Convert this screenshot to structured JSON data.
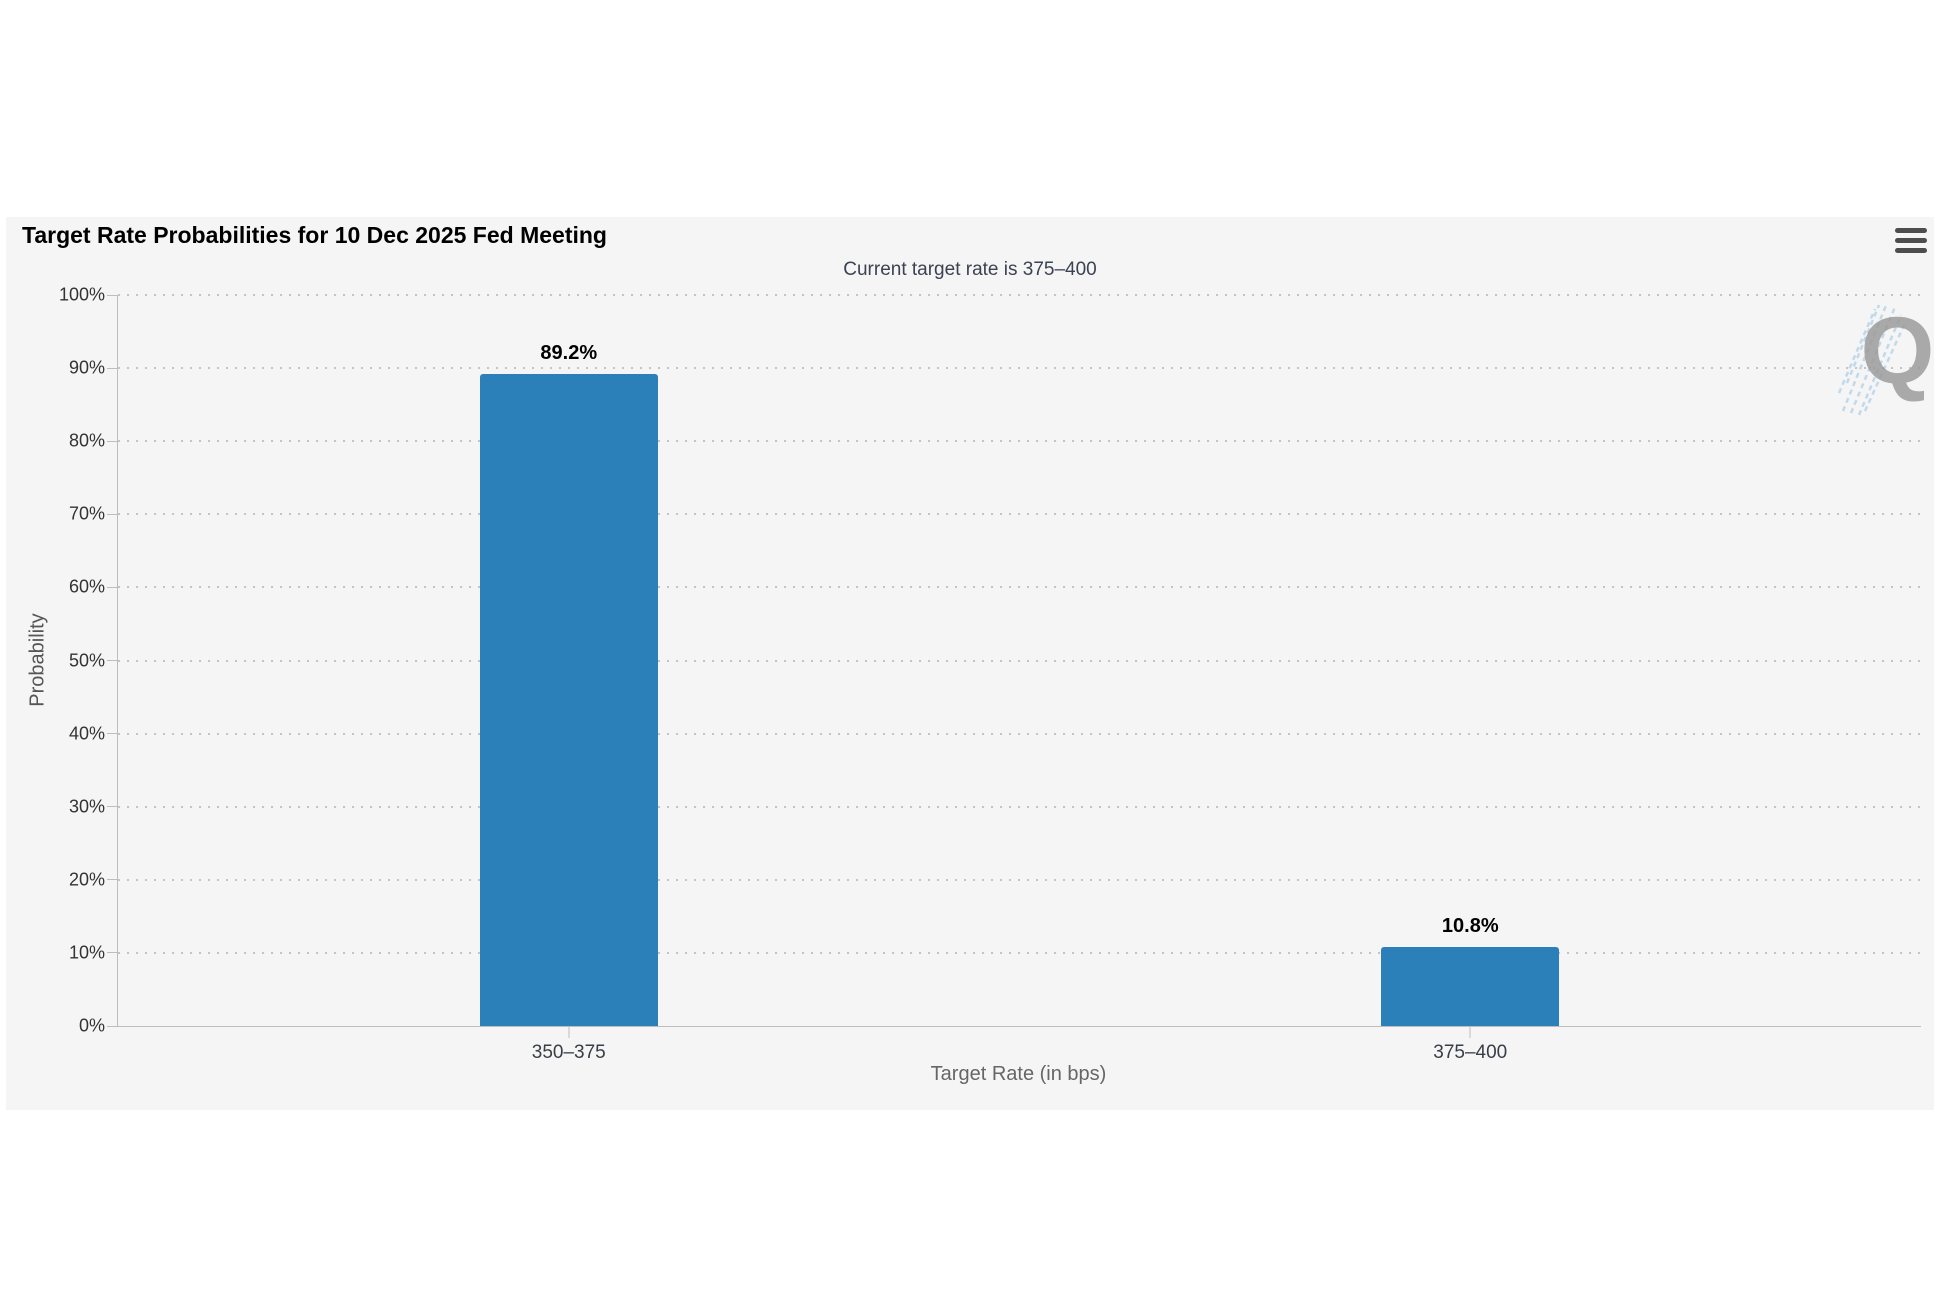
{
  "header": {
    "title": "Target Rate Probabilities for 10 Dec 2025 Fed Meeting",
    "subtitle": "Current target rate is 375–400",
    "menu_icon": "hamburger-icon"
  },
  "watermark": {
    "letter": "Q"
  },
  "chart_data": {
    "type": "bar",
    "title": "Target Rate Probabilities for 10 Dec 2025 Fed Meeting",
    "subtitle": "Current target rate is 375–400",
    "categories": [
      "350–375",
      "375–400"
    ],
    "values": [
      89.2,
      10.8
    ],
    "value_labels": [
      "89.2%",
      "10.8%"
    ],
    "xlabel": "Target Rate (in bps)",
    "ylabel": "Probability",
    "ylim": [
      0,
      100
    ],
    "ytick_step": 10,
    "yticks": [
      "0%",
      "10%",
      "20%",
      "30%",
      "40%",
      "50%",
      "60%",
      "70%",
      "80%",
      "90%",
      "100%"
    ],
    "grid": "horizontal-dotted",
    "legend": "none",
    "bar_color": "#2b80b9",
    "panel_background": "#f5f5f5",
    "page_background": "#ffffff"
  }
}
